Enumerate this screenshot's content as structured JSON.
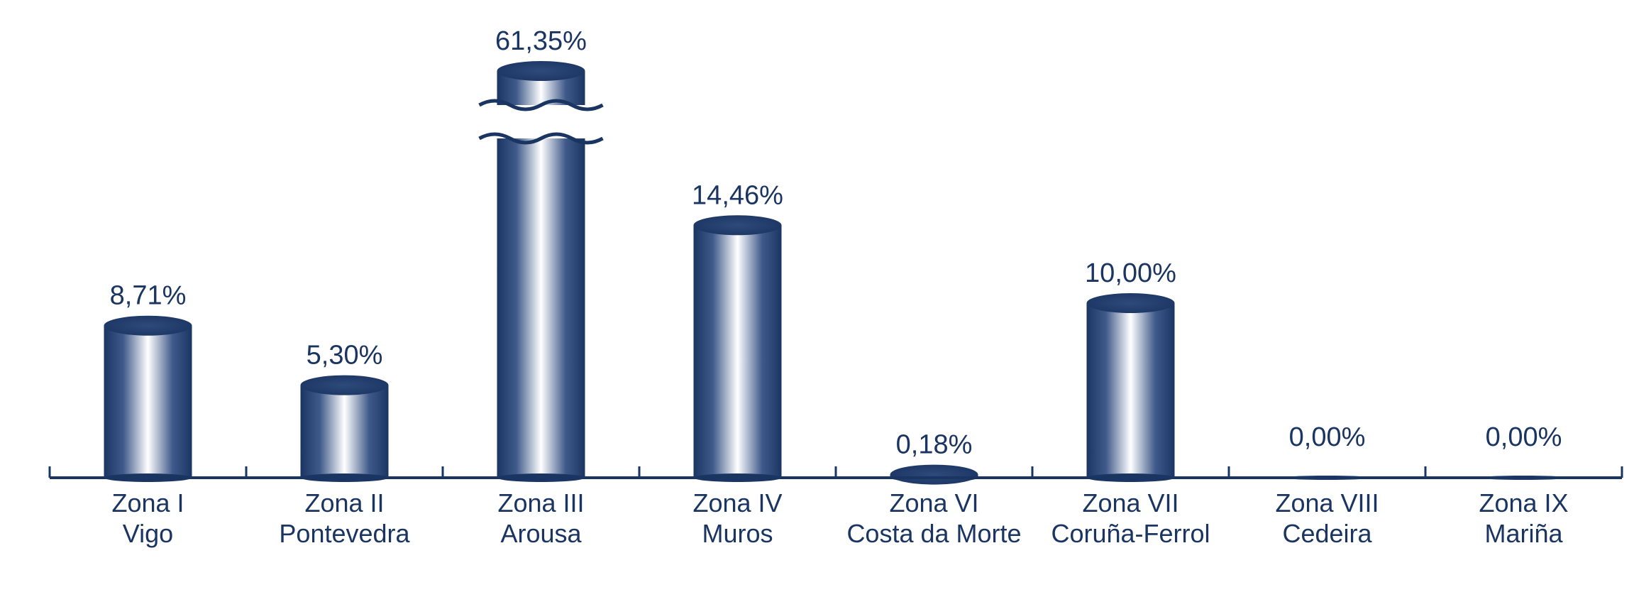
{
  "chart_data": {
    "type": "bar",
    "title": "",
    "xlabel": "",
    "ylabel": "",
    "ylim": [
      0,
      16
    ],
    "axis_break": true,
    "grid": false,
    "legend": "none",
    "bar_color": "#1a3562",
    "categories": [
      {
        "line1": "Zona I",
        "line2": "Vigo"
      },
      {
        "line1": "Zona II",
        "line2": "Pontevedra"
      },
      {
        "line1": "Zona III",
        "line2": "Arousa"
      },
      {
        "line1": "Zona IV",
        "line2": "Muros"
      },
      {
        "line1": "Zona VI",
        "line2": "Costa da Morte"
      },
      {
        "line1": "Zona VII",
        "line2": "Coruña-Ferrol"
      },
      {
        "line1": "Zona VIII",
        "line2": "Cedeira"
      },
      {
        "line1": "Zona IX",
        "line2": "Mariña"
      }
    ],
    "values": [
      8.71,
      5.3,
      61.35,
      14.46,
      0.18,
      10.0,
      0.0,
      0.0
    ],
    "labels": [
      "8,71%",
      "5,30%",
      "61,35%",
      "14,46%",
      "0,18%",
      "10,00%",
      "0,00%",
      "0,00%"
    ],
    "broken_bar_index": 2
  }
}
